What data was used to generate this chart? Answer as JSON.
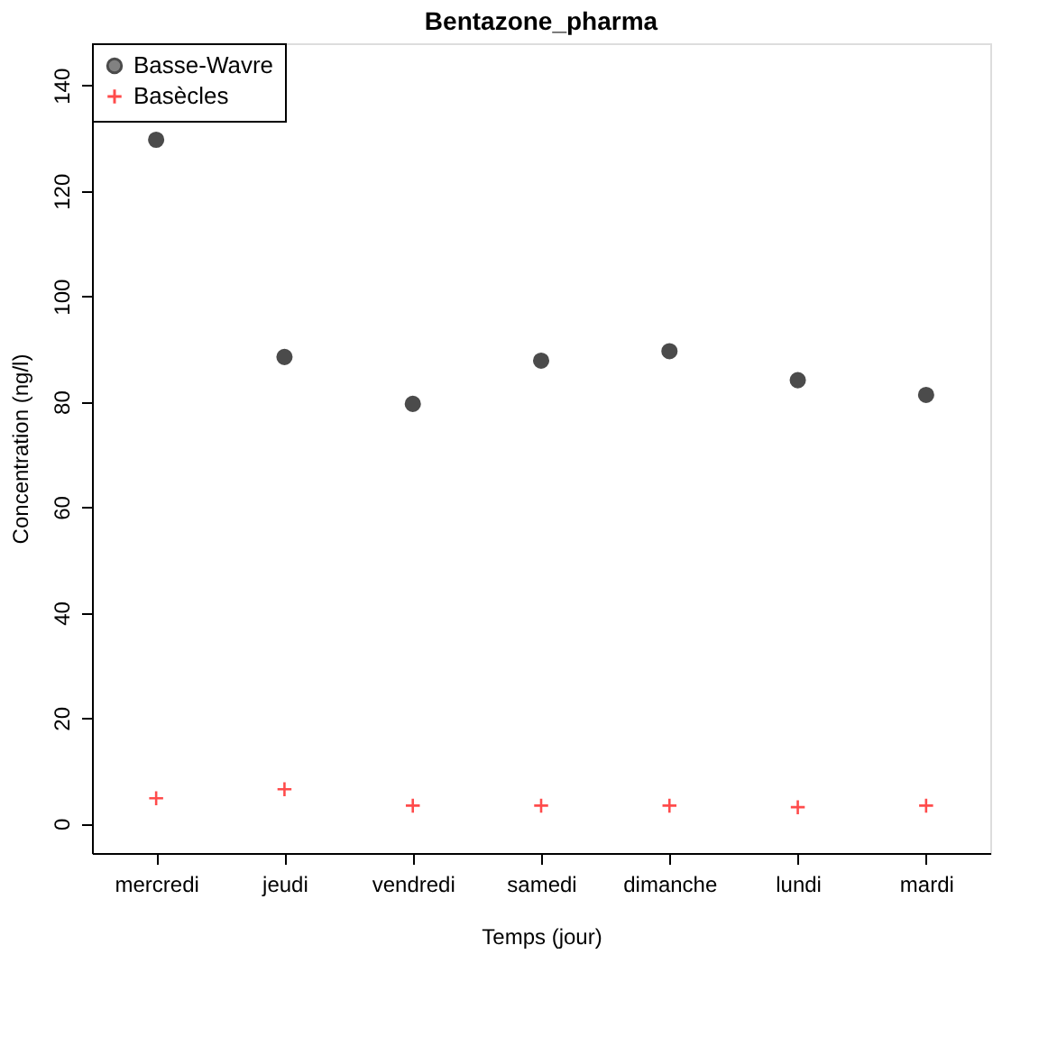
{
  "chart_data": {
    "type": "scatter",
    "title": "Bentazone_pharma",
    "xlabel": "Temps (jour)",
    "ylabel": "Concentration (ng/l)",
    "categories": [
      "mercredi",
      "jeudi",
      "vendredi",
      "samedi",
      "dimanche",
      "lundi",
      "mardi"
    ],
    "series": [
      {
        "name": "Basse-Wavre",
        "color": "#000000",
        "marker": "circle",
        "values": [
          129.7,
          88.5,
          79.6,
          87.8,
          89.6,
          84.1,
          81.3
        ]
      },
      {
        "name": "Basècles",
        "color": "#ff0000",
        "marker": "cross",
        "values": [
          4.8,
          6.5,
          3.4,
          3.4,
          3.4,
          3.1,
          3.4
        ]
      }
    ],
    "ylim": [
      -5.6,
      148
    ],
    "yticks": [
      0,
      20,
      40,
      60,
      80,
      100,
      120,
      140
    ],
    "grid": false,
    "legend": "top left"
  }
}
